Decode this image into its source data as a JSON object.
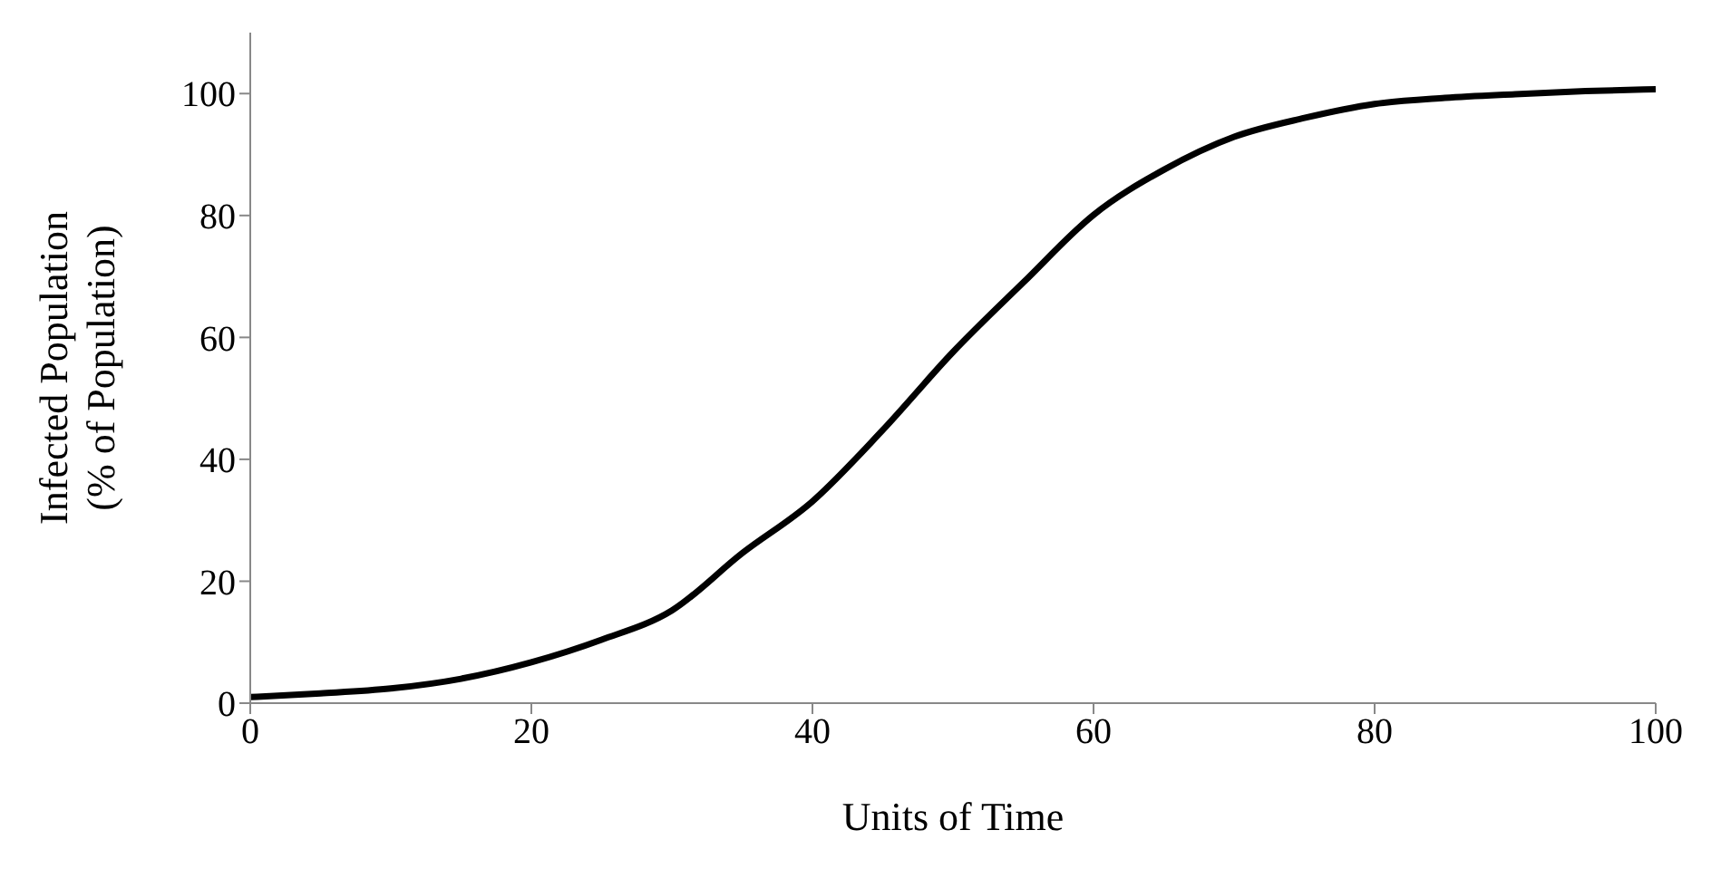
{
  "chart_data": {
    "type": "line",
    "xlabel": "Units of Time",
    "ylabel": "Infected Population\n(% of Population)",
    "x": [
      0,
      5,
      10,
      15,
      20,
      25,
      30,
      35,
      40,
      45,
      50,
      55,
      60,
      65,
      70,
      75,
      80,
      85,
      90,
      95,
      100
    ],
    "series": [
      {
        "color": "#000000",
        "values": [
          1.0,
          1.6,
          2.4,
          4.0,
          6.7,
          10.4,
          15.2,
          24.6,
          33.1,
          44.8,
          57.6,
          69,
          80.1,
          87.5,
          92.9,
          96,
          98.3,
          99.3,
          99.9,
          100.4,
          100.7
        ]
      }
    ],
    "xlim": [
      0,
      100
    ],
    "xticks": [
      0,
      20,
      40,
      60,
      80,
      100
    ],
    "ylim": [
      0,
      110
    ],
    "yticks": [
      0,
      20,
      40,
      60,
      80,
      100
    ],
    "grid": false,
    "legend": false,
    "marker": "none",
    "line_style": "solid"
  }
}
